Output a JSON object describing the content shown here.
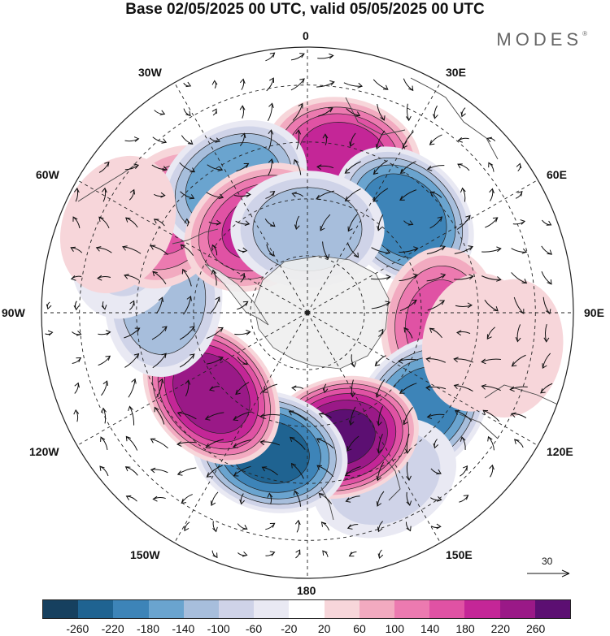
{
  "title": "Base 02/05/2025 00 UTC, valid 05/05/2025 00 UTC",
  "brand": "MODES",
  "brand_mark": "®",
  "longitude_labels": {
    "n0": "0",
    "e30": "30E",
    "e60": "60E",
    "e90": "90E",
    "e120": "120E",
    "e150": "150E",
    "s180": "180",
    "w150": "150W",
    "w120": "120W",
    "w90": "90W",
    "w60": "60W",
    "w30": "30W"
  },
  "vector_reference": "30",
  "colorbar": {
    "colors": [
      "#16405f",
      "#1f6391",
      "#3d84b8",
      "#6aa4cf",
      "#a7bedc",
      "#cfd3e8",
      "#e9e9f3",
      "#ffffff",
      "#f7d6da",
      "#f2aac0",
      "#ec7ab0",
      "#e052a4",
      "#c42697",
      "#9a1987",
      "#5c0f72"
    ],
    "tick_labels": [
      "-260",
      "-220",
      "-180",
      "-140",
      "-100",
      "-60",
      "-20",
      "20",
      "60",
      "100",
      "140",
      "180",
      "220",
      "260"
    ]
  },
  "anomaly_centers": [
    {
      "lon": 13,
      "lat": -48,
      "value": 200
    },
    {
      "lon": 45,
      "lat": -54,
      "value": -210
    },
    {
      "lon": 95,
      "lat": -55,
      "value": 150
    },
    {
      "lon": 130,
      "lat": -51,
      "value": -200
    },
    {
      "lon": 155,
      "lat": -42,
      "value": -80
    },
    {
      "lon": 100,
      "lat": -36,
      "value": 40
    },
    {
      "lon": 100,
      "lat": -45,
      "value": 40
    },
    {
      "lon": 165,
      "lat": -56,
      "value": 260
    },
    {
      "lon": -165,
      "lat": -52,
      "value": -230
    },
    {
      "lon": -130,
      "lat": -57,
      "value": 245
    },
    {
      "lon": -85,
      "lat": -52,
      "value": -130
    },
    {
      "lon": -70,
      "lat": -40,
      "value": -60
    },
    {
      "lon": -55,
      "lat": -46,
      "value": 140
    },
    {
      "lon": -30,
      "lat": -51,
      "value": -170
    },
    {
      "lon": -30,
      "lat": -64,
      "value": 180
    },
    {
      "lon": 0,
      "lat": -68,
      "value": -130
    },
    {
      "lon": -65,
      "lat": -35,
      "value": 50
    }
  ]
}
